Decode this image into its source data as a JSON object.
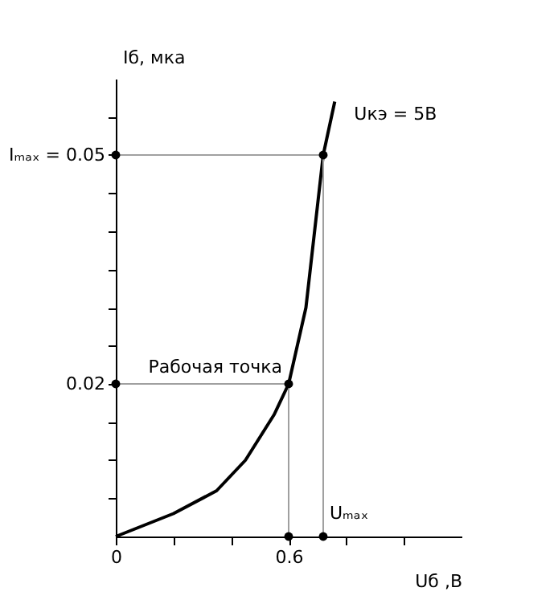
{
  "chart_data": {
    "type": "line",
    "xlabel": "Uб ,В",
    "ylabel": "Iб, мка",
    "xlim": [
      0,
      1.2
    ],
    "ylim": [
      0,
      0.06
    ],
    "xticks": [
      0,
      {
        "value": 0.2,
        "label": null
      },
      {
        "value": 0.4,
        "label": null
      },
      0.6,
      {
        "value": 0.8,
        "label": null
      },
      {
        "value": 1.0,
        "label": null
      }
    ],
    "yticks": [
      {
        "value": 0.005,
        "label": null
      },
      {
        "value": 0.01,
        "label": null
      },
      {
        "value": 0.015,
        "label": null
      },
      0.02,
      {
        "value": 0.025,
        "label": null
      },
      {
        "value": 0.03,
        "label": null
      },
      {
        "value": 0.035,
        "label": null
      },
      {
        "value": 0.04,
        "label": null
      },
      {
        "value": 0.045,
        "label": null
      },
      {
        "value": 0.05,
        "label": "Iₘₐₓ = 0.05"
      },
      {
        "value": 0.055,
        "label": null
      }
    ],
    "grid": false,
    "series": [
      {
        "name": "Uкэ = 5В",
        "color": "#000000",
        "x": [
          0,
          0.2,
          0.35,
          0.45,
          0.55,
          0.6,
          0.66,
          0.72,
          0.76
        ],
        "values": [
          0,
          0.003,
          0.006,
          0.01,
          0.016,
          0.02,
          0.03,
          0.05,
          0.057
        ]
      },
      {
        "type": "line",
        "color": "#a0a0a0",
        "x": [
          0,
          0.6,
          0.6
        ],
        "values": [
          0.02,
          0.02,
          0
        ]
      },
      {
        "type": "line",
        "color": "#a0a0a0",
        "x": [
          0,
          0.72,
          0.72
        ],
        "values": [
          0.05,
          0.05,
          0
        ]
      },
      {
        "type": "scatter",
        "marker": "circle",
        "color": "#000000",
        "x": [
          0,
          0.6,
          0.6,
          0,
          0.72,
          0.72
        ],
        "values": [
          0.02,
          0.02,
          0,
          0.05,
          0.05,
          0
        ]
      }
    ],
    "annotations": [
      {
        "text": "Рабочая точка",
        "x": 0.6,
        "y": 0.02
      },
      {
        "text": "Uₘₐₓ",
        "x": 0.72,
        "y": 0
      }
    ]
  }
}
